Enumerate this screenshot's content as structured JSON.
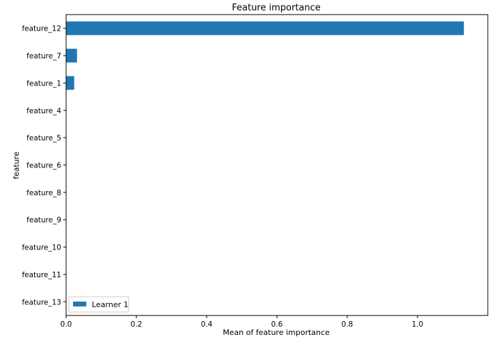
{
  "chart_data": {
    "type": "bar",
    "orientation": "horizontal",
    "title": "Feature importance",
    "xlabel": "Mean of feature importance",
    "ylabel": "feature",
    "xlim": [
      0,
      1.2
    ],
    "xticks": [
      0,
      0.2,
      0.4,
      0.6,
      0.8,
      1.0
    ],
    "xtick_labels": [
      "0.0",
      "0.2",
      "0.4",
      "0.6",
      "0.8",
      "1.0"
    ],
    "categories": [
      "feature_12",
      "feature_7",
      "feature_1",
      "feature_4",
      "feature_5",
      "feature_6",
      "feature_8",
      "feature_9",
      "feature_10",
      "feature_11",
      "feature_13"
    ],
    "series": [
      {
        "name": "Learner 1",
        "color": "#1f77b4",
        "values": [
          1.132,
          0.031,
          0.023,
          0,
          0,
          0,
          0,
          0,
          0,
          0,
          0
        ]
      }
    ],
    "legend_position": "lower-left",
    "grid": false
  }
}
